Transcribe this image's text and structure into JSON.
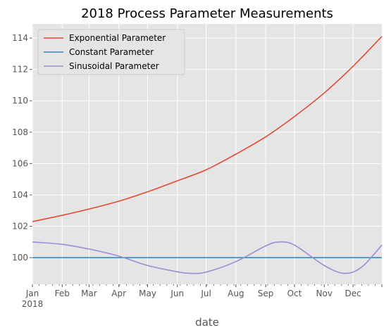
{
  "chart_data": {
    "type": "line",
    "title": "2018 Process Parameter Measurements",
    "xlabel": "date",
    "ylabel": "",
    "x_range": [
      "2018-01-01",
      "2018-12-31"
    ],
    "ylim": [
      98.3,
      114.9
    ],
    "y_ticks": [
      100,
      102,
      104,
      106,
      108,
      110,
      112,
      114
    ],
    "x_ticks": [
      {
        "date": "2018-01-01",
        "label": "Jan",
        "sublabel": "2018"
      },
      {
        "date": "2018-02-01",
        "label": "Feb"
      },
      {
        "date": "2018-03-01",
        "label": "Mar"
      },
      {
        "date": "2018-04-01",
        "label": "Apr"
      },
      {
        "date": "2018-05-01",
        "label": "May"
      },
      {
        "date": "2018-06-01",
        "label": "Jun"
      },
      {
        "date": "2018-07-01",
        "label": "Jul"
      },
      {
        "date": "2018-08-01",
        "label": "Aug"
      },
      {
        "date": "2018-09-01",
        "label": "Sep"
      },
      {
        "date": "2018-10-01",
        "label": "Oct"
      },
      {
        "date": "2018-11-01",
        "label": "Nov"
      },
      {
        "date": "2018-12-01",
        "label": "Dec"
      }
    ],
    "grid": true,
    "legend_position": "top-left",
    "series": [
      {
        "name": "Exponential Parameter",
        "color": "#E24A33",
        "points": [
          [
            "2018-01-01",
            102.3
          ],
          [
            "2018-02-01",
            102.7
          ],
          [
            "2018-03-01",
            103.1
          ],
          [
            "2018-04-01",
            103.6
          ],
          [
            "2018-05-01",
            104.2
          ],
          [
            "2018-06-01",
            104.9
          ],
          [
            "2018-07-01",
            105.6
          ],
          [
            "2018-08-01",
            106.6
          ],
          [
            "2018-09-01",
            107.7
          ],
          [
            "2018-10-01",
            109.0
          ],
          [
            "2018-11-01",
            110.5
          ],
          [
            "2018-12-01",
            112.2
          ],
          [
            "2018-12-31",
            114.1
          ]
        ]
      },
      {
        "name": "Constant Parameter",
        "color": "#348ABD",
        "points": [
          [
            "2018-01-01",
            100.0
          ],
          [
            "2018-12-31",
            100.0
          ]
        ]
      },
      {
        "name": "Sinusoidal Parameter",
        "color": "#988ED5",
        "points": [
          [
            "2018-01-01",
            101.0
          ],
          [
            "2018-02-01",
            100.85
          ],
          [
            "2018-03-01",
            100.55
          ],
          [
            "2018-04-01",
            100.1
          ],
          [
            "2018-05-01",
            99.5
          ],
          [
            "2018-06-01",
            99.1
          ],
          [
            "2018-06-15",
            99.0
          ],
          [
            "2018-07-01",
            99.08
          ],
          [
            "2018-08-01",
            99.75
          ],
          [
            "2018-09-01",
            100.75
          ],
          [
            "2018-09-15",
            101.0
          ],
          [
            "2018-10-01",
            100.8
          ],
          [
            "2018-11-01",
            99.5
          ],
          [
            "2018-11-22",
            99.0
          ],
          [
            "2018-12-10",
            99.4
          ],
          [
            "2018-12-31",
            100.8
          ]
        ]
      }
    ]
  }
}
